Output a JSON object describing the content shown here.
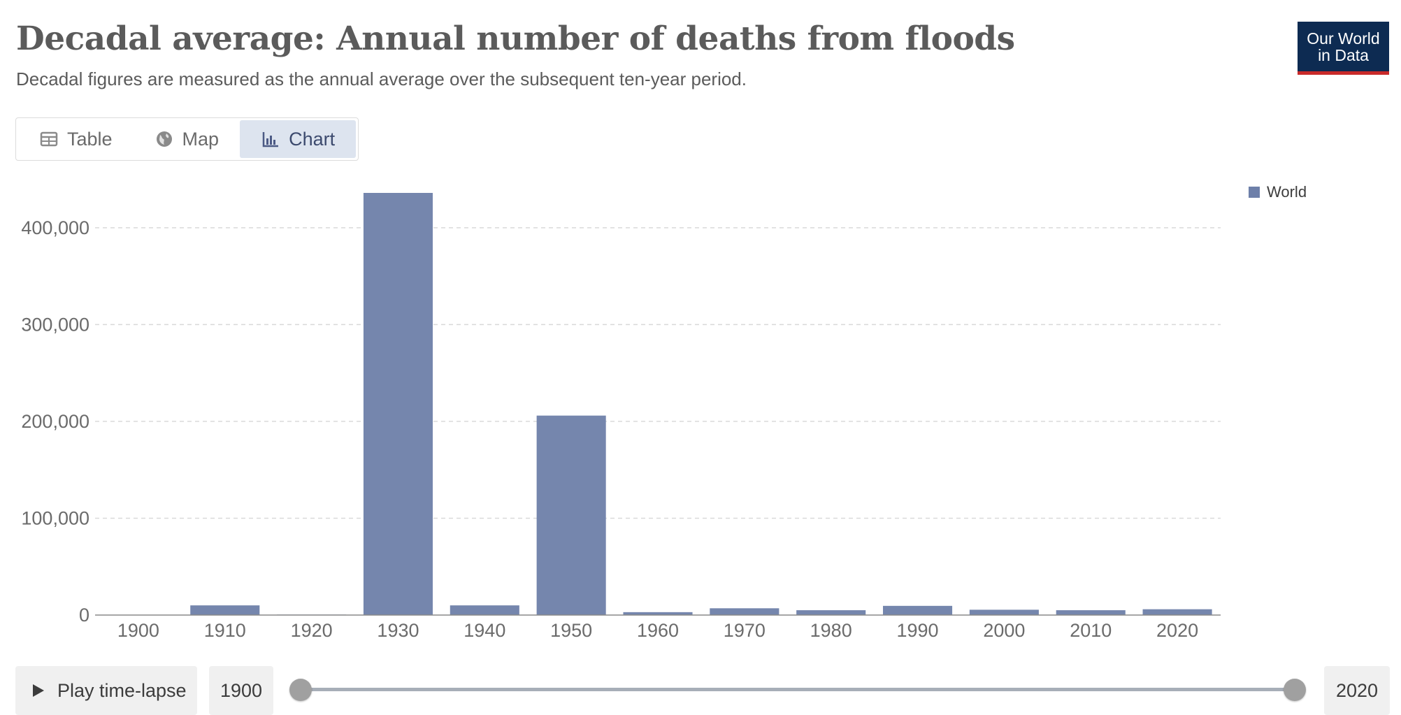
{
  "header": {
    "title": "Decadal average: Annual number of deaths from floods",
    "subtitle": "Decadal figures are measured as the annual average over the subsequent ten-year period."
  },
  "logo": {
    "line1": "Our World",
    "line2": "in Data"
  },
  "tabs": [
    {
      "label": "Table",
      "icon": "table-icon",
      "active": false
    },
    {
      "label": "Map",
      "icon": "globe-icon",
      "active": false
    },
    {
      "label": "Chart",
      "icon": "bar-chart-icon",
      "active": true
    }
  ],
  "legend": {
    "label": "World",
    "color": "#6d7fa9"
  },
  "timeline": {
    "play_label": "Play time-lapse",
    "start_year": "1900",
    "end_year": "2020"
  },
  "colors": {
    "bar": "#7586ad",
    "logo_bg": "#0d2b52",
    "logo_accent": "#c92a2a"
  },
  "chart_data": {
    "type": "bar",
    "categories": [
      "1900",
      "1910",
      "1920",
      "1930",
      "1940",
      "1950",
      "1960",
      "1970",
      "1980",
      "1990",
      "2000",
      "2010",
      "2020"
    ],
    "series": [
      {
        "name": "World",
        "values": [
          0,
          10000,
          500,
          436000,
          10000,
          206000,
          3000,
          7000,
          5000,
          9500,
          5500,
          5000,
          6000
        ]
      }
    ],
    "yticks": [
      0,
      100000,
      200000,
      300000,
      400000
    ],
    "ytick_labels": [
      "0",
      "100,000",
      "200,000",
      "300,000",
      "400,000"
    ],
    "ylim": [
      0,
      436000
    ],
    "grid": "horizontal-dashed",
    "legend_position": "top-right"
  }
}
